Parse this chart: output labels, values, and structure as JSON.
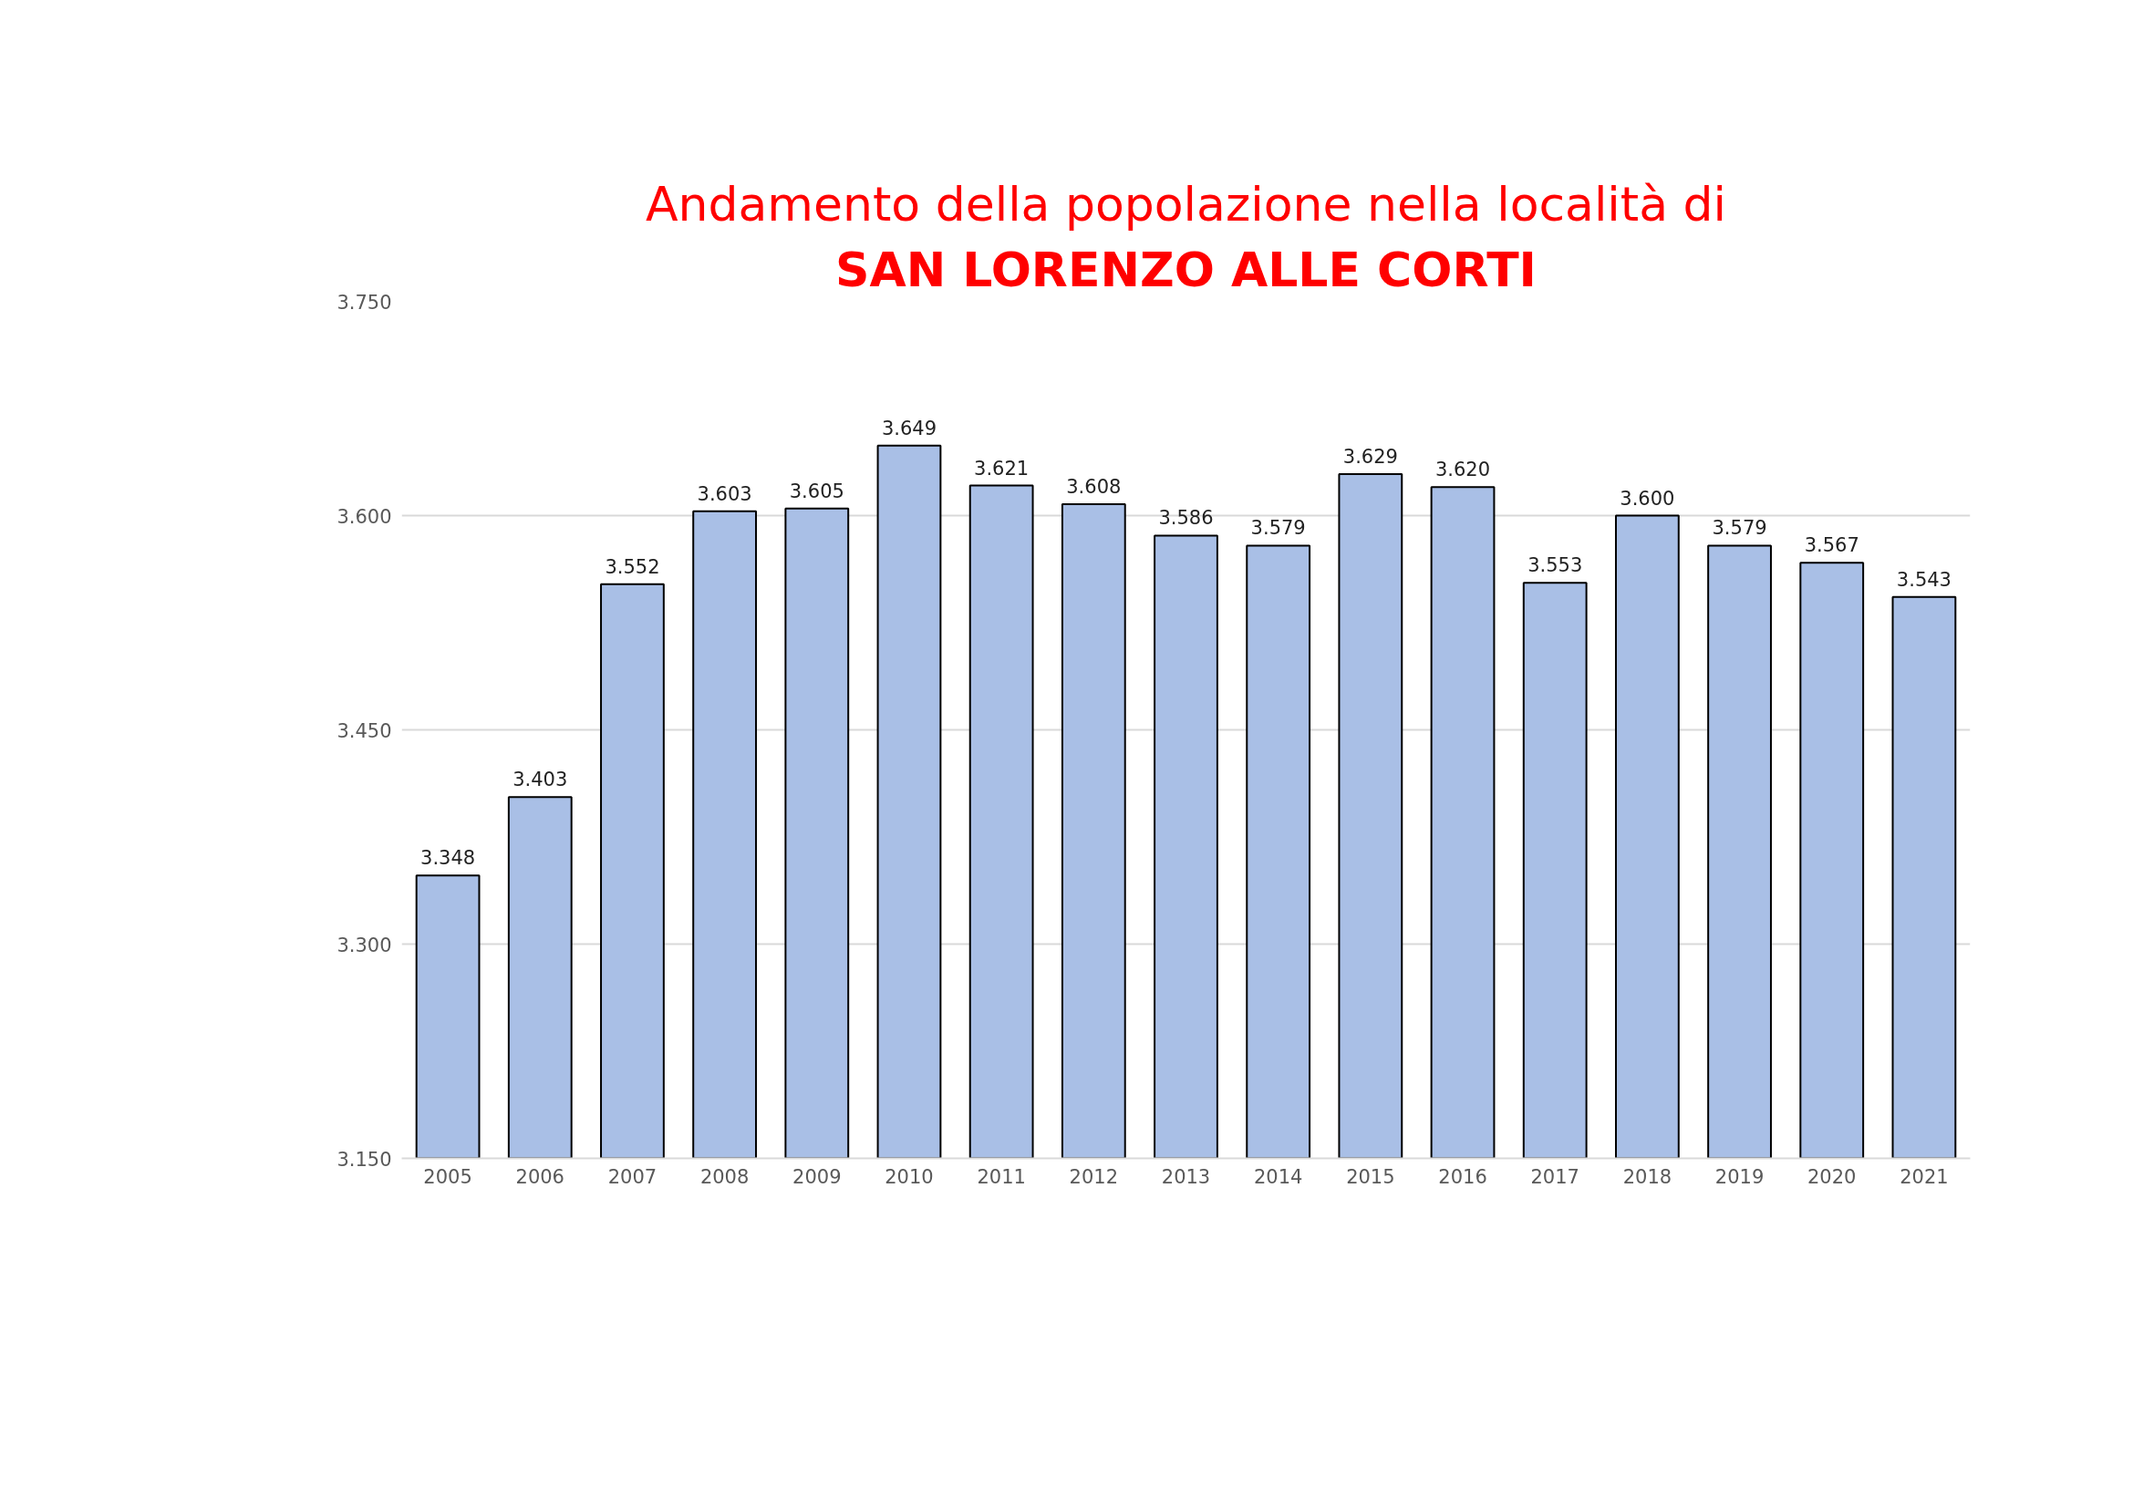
{
  "chart_data": {
    "type": "bar",
    "title": "Andamento della popolazione nella località di",
    "subtitle": "SAN LORENZO ALLE CORTI",
    "categories": [
      "2005",
      "2006",
      "2007",
      "2008",
      "2009",
      "2010",
      "2011",
      "2012",
      "2013",
      "2014",
      "2015",
      "2016",
      "2017",
      "2018",
      "2019",
      "2020",
      "2021"
    ],
    "values": [
      3348,
      3403,
      3552,
      3603,
      3605,
      3649,
      3621,
      3608,
      3586,
      3579,
      3629,
      3620,
      3553,
      3600,
      3579,
      3567,
      3543
    ],
    "value_labels": [
      "3.348",
      "3.403",
      "3.552",
      "3.603",
      "3.605",
      "3.649",
      "3.621",
      "3.608",
      "3.586",
      "3.579",
      "3.629",
      "3.620",
      "3.553",
      "3.600",
      "3.579",
      "3.567",
      "3.543"
    ],
    "color": "#a9bfe6",
    "ylim": [
      3150,
      3750
    ],
    "yticks": [
      {
        "value": 3150,
        "label": "3.150"
      },
      {
        "value": 3300,
        "label": "3.300"
      },
      {
        "value": 3450,
        "label": "3.450"
      },
      {
        "value": 3600,
        "label": "3.600"
      },
      {
        "value": 3750,
        "label": "3.750"
      }
    ],
    "grid": "y"
  }
}
